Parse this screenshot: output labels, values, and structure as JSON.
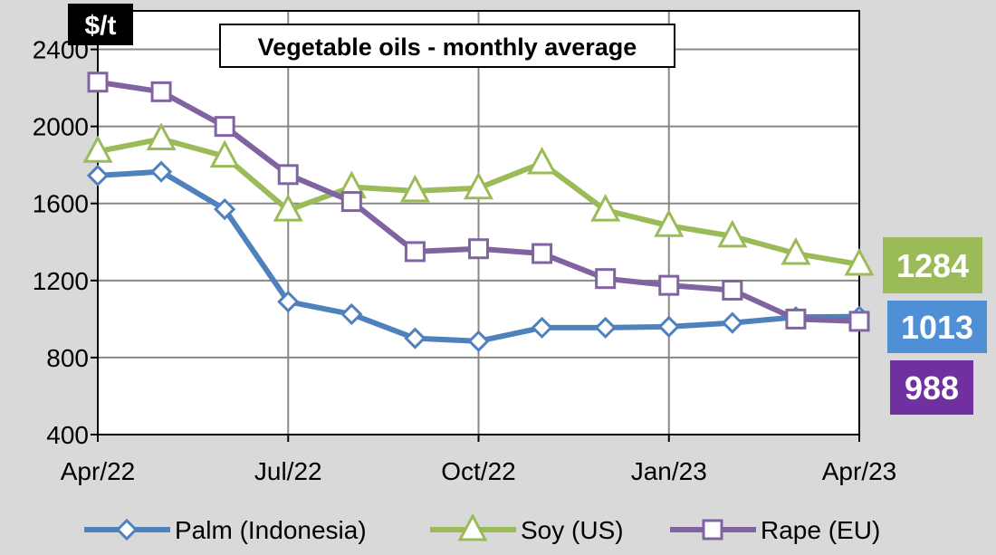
{
  "chart_data": {
    "type": "line",
    "title": "Vegetable oils - monthly average",
    "ylabel": "$/t",
    "xlabel": "",
    "ylim": [
      400,
      2600
    ],
    "yticks": [
      400,
      800,
      1200,
      1600,
      2000,
      2400
    ],
    "x": [
      "Apr/22",
      "May/22",
      "Jun/22",
      "Jul/22",
      "Aug/22",
      "Sep/22",
      "Oct/22",
      "Nov/22",
      "Dec/22",
      "Jan/23",
      "Feb/23",
      "Mar/23",
      "Apr/23"
    ],
    "xtick_labels": [
      "Apr/22",
      "Jul/22",
      "Oct/22",
      "Jan/23",
      "Apr/23"
    ],
    "grid": true,
    "series": [
      {
        "name": "Palm (Indonesia)",
        "marker": "diamond",
        "color": "#4f81bd",
        "values": [
          1745,
          1765,
          1570,
          1090,
          1025,
          900,
          885,
          955,
          955,
          960,
          980,
          1010,
          1013
        ]
      },
      {
        "name": "Soy (US)",
        "marker": "triangle",
        "color": "#9bbb59",
        "values": [
          1870,
          1935,
          1845,
          1565,
          1685,
          1665,
          1680,
          1810,
          1565,
          1485,
          1430,
          1340,
          1284
        ]
      },
      {
        "name": "Rape (EU)",
        "marker": "square",
        "color": "#8064a2",
        "values": [
          2230,
          2180,
          2000,
          1750,
          1610,
          1350,
          1365,
          1340,
          1210,
          1175,
          1150,
          1000,
          988
        ]
      }
    ],
    "end_labels": [
      {
        "text": "1284",
        "color": "#9bbb59"
      },
      {
        "text": "1013",
        "color": "#4f8fd6"
      },
      {
        "text": "988",
        "color": "#7030a0"
      }
    ],
    "legend_position": "bottom"
  }
}
